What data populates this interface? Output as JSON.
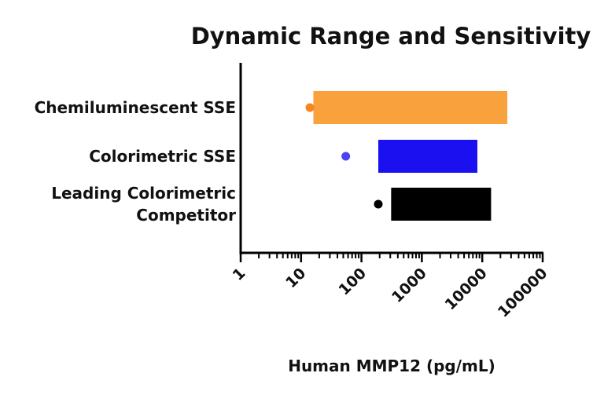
{
  "chart_data": {
    "type": "bar",
    "title": "Dynamic Range and Sensitivity",
    "xlabel": "Human MMP12 (pg/mL)",
    "ylabel": "",
    "x_scale": "log",
    "xlim": [
      1,
      100000
    ],
    "x_ticks": [
      "1",
      "10",
      "100",
      "1000",
      "10000",
      "100000"
    ],
    "grid": false,
    "legend": "none",
    "categories": [
      "Chemiluminescent SSE",
      [
        "Colorimetric SSE"
      ],
      [
        "Leading Colorimetric",
        "Competitor"
      ]
    ],
    "category_lines": [
      [
        "Chemiluminescent SSE"
      ],
      [
        "Colorimetric SSE"
      ],
      [
        "Leading Colorimetric",
        "Competitor"
      ]
    ],
    "range_low": [
      16,
      190,
      310
    ],
    "range_high": [
      26000,
      8300,
      14000
    ],
    "sensitivity_point": [
      14,
      55,
      190
    ],
    "colors": [
      "#f9a13c",
      "#1a10f0",
      "#000000"
    ],
    "point_colors": [
      "#f7851f",
      "#4b45f0",
      "#000000"
    ]
  }
}
